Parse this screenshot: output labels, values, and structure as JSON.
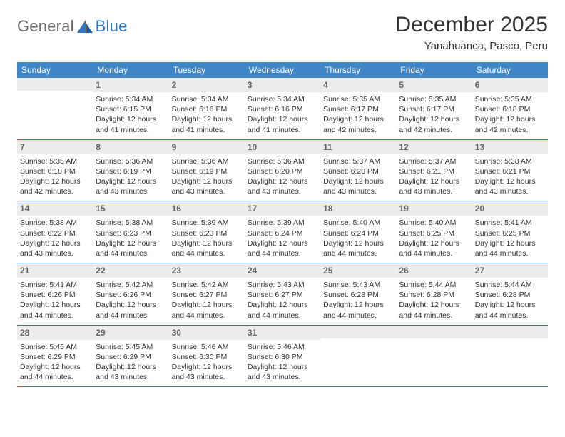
{
  "brand": {
    "part1": "General",
    "part2": "Blue"
  },
  "title": "December 2025",
  "location": "Yanahuanca, Pasco, Peru",
  "dow": [
    "Sunday",
    "Monday",
    "Tuesday",
    "Wednesday",
    "Thursday",
    "Friday",
    "Saturday"
  ],
  "colors": {
    "header_bg": "#3f86c7",
    "header_text": "#ffffff",
    "rule": "#2f78c4",
    "daynum_bg": "#ececec",
    "daynum_text": "#666666",
    "body_text": "#333333",
    "logo_gray": "#6b6b6b",
    "logo_blue": "#2f78c4"
  },
  "weeks": [
    [
      {
        "n": "",
        "lines": []
      },
      {
        "n": "1",
        "lines": [
          "Sunrise: 5:34 AM",
          "Sunset: 6:15 PM",
          "Daylight: 12 hours and 41 minutes."
        ]
      },
      {
        "n": "2",
        "lines": [
          "Sunrise: 5:34 AM",
          "Sunset: 6:16 PM",
          "Daylight: 12 hours and 41 minutes."
        ]
      },
      {
        "n": "3",
        "lines": [
          "Sunrise: 5:34 AM",
          "Sunset: 6:16 PM",
          "Daylight: 12 hours and 41 minutes."
        ]
      },
      {
        "n": "4",
        "lines": [
          "Sunrise: 5:35 AM",
          "Sunset: 6:17 PM",
          "Daylight: 12 hours and 42 minutes."
        ]
      },
      {
        "n": "5",
        "lines": [
          "Sunrise: 5:35 AM",
          "Sunset: 6:17 PM",
          "Daylight: 12 hours and 42 minutes."
        ]
      },
      {
        "n": "6",
        "lines": [
          "Sunrise: 5:35 AM",
          "Sunset: 6:18 PM",
          "Daylight: 12 hours and 42 minutes."
        ]
      }
    ],
    [
      {
        "n": "7",
        "lines": [
          "Sunrise: 5:35 AM",
          "Sunset: 6:18 PM",
          "Daylight: 12 hours and 42 minutes."
        ]
      },
      {
        "n": "8",
        "lines": [
          "Sunrise: 5:36 AM",
          "Sunset: 6:19 PM",
          "Daylight: 12 hours and 43 minutes."
        ]
      },
      {
        "n": "9",
        "lines": [
          "Sunrise: 5:36 AM",
          "Sunset: 6:19 PM",
          "Daylight: 12 hours and 43 minutes."
        ]
      },
      {
        "n": "10",
        "lines": [
          "Sunrise: 5:36 AM",
          "Sunset: 6:20 PM",
          "Daylight: 12 hours and 43 minutes."
        ]
      },
      {
        "n": "11",
        "lines": [
          "Sunrise: 5:37 AM",
          "Sunset: 6:20 PM",
          "Daylight: 12 hours and 43 minutes."
        ]
      },
      {
        "n": "12",
        "lines": [
          "Sunrise: 5:37 AM",
          "Sunset: 6:21 PM",
          "Daylight: 12 hours and 43 minutes."
        ]
      },
      {
        "n": "13",
        "lines": [
          "Sunrise: 5:38 AM",
          "Sunset: 6:21 PM",
          "Daylight: 12 hours and 43 minutes."
        ]
      }
    ],
    [
      {
        "n": "14",
        "lines": [
          "Sunrise: 5:38 AM",
          "Sunset: 6:22 PM",
          "Daylight: 12 hours and 43 minutes."
        ]
      },
      {
        "n": "15",
        "lines": [
          "Sunrise: 5:38 AM",
          "Sunset: 6:23 PM",
          "Daylight: 12 hours and 44 minutes."
        ]
      },
      {
        "n": "16",
        "lines": [
          "Sunrise: 5:39 AM",
          "Sunset: 6:23 PM",
          "Daylight: 12 hours and 44 minutes."
        ]
      },
      {
        "n": "17",
        "lines": [
          "Sunrise: 5:39 AM",
          "Sunset: 6:24 PM",
          "Daylight: 12 hours and 44 minutes."
        ]
      },
      {
        "n": "18",
        "lines": [
          "Sunrise: 5:40 AM",
          "Sunset: 6:24 PM",
          "Daylight: 12 hours and 44 minutes."
        ]
      },
      {
        "n": "19",
        "lines": [
          "Sunrise: 5:40 AM",
          "Sunset: 6:25 PM",
          "Daylight: 12 hours and 44 minutes."
        ]
      },
      {
        "n": "20",
        "lines": [
          "Sunrise: 5:41 AM",
          "Sunset: 6:25 PM",
          "Daylight: 12 hours and 44 minutes."
        ]
      }
    ],
    [
      {
        "n": "21",
        "lines": [
          "Sunrise: 5:41 AM",
          "Sunset: 6:26 PM",
          "Daylight: 12 hours and 44 minutes."
        ]
      },
      {
        "n": "22",
        "lines": [
          "Sunrise: 5:42 AM",
          "Sunset: 6:26 PM",
          "Daylight: 12 hours and 44 minutes."
        ]
      },
      {
        "n": "23",
        "lines": [
          "Sunrise: 5:42 AM",
          "Sunset: 6:27 PM",
          "Daylight: 12 hours and 44 minutes."
        ]
      },
      {
        "n": "24",
        "lines": [
          "Sunrise: 5:43 AM",
          "Sunset: 6:27 PM",
          "Daylight: 12 hours and 44 minutes."
        ]
      },
      {
        "n": "25",
        "lines": [
          "Sunrise: 5:43 AM",
          "Sunset: 6:28 PM",
          "Daylight: 12 hours and 44 minutes."
        ]
      },
      {
        "n": "26",
        "lines": [
          "Sunrise: 5:44 AM",
          "Sunset: 6:28 PM",
          "Daylight: 12 hours and 44 minutes."
        ]
      },
      {
        "n": "27",
        "lines": [
          "Sunrise: 5:44 AM",
          "Sunset: 6:28 PM",
          "Daylight: 12 hours and 44 minutes."
        ]
      }
    ],
    [
      {
        "n": "28",
        "lines": [
          "Sunrise: 5:45 AM",
          "Sunset: 6:29 PM",
          "Daylight: 12 hours and 44 minutes."
        ]
      },
      {
        "n": "29",
        "lines": [
          "Sunrise: 5:45 AM",
          "Sunset: 6:29 PM",
          "Daylight: 12 hours and 43 minutes."
        ]
      },
      {
        "n": "30",
        "lines": [
          "Sunrise: 5:46 AM",
          "Sunset: 6:30 PM",
          "Daylight: 12 hours and 43 minutes."
        ]
      },
      {
        "n": "31",
        "lines": [
          "Sunrise: 5:46 AM",
          "Sunset: 6:30 PM",
          "Daylight: 12 hours and 43 minutes."
        ]
      },
      {
        "n": "",
        "lines": []
      },
      {
        "n": "",
        "lines": []
      },
      {
        "n": "",
        "lines": []
      }
    ]
  ]
}
